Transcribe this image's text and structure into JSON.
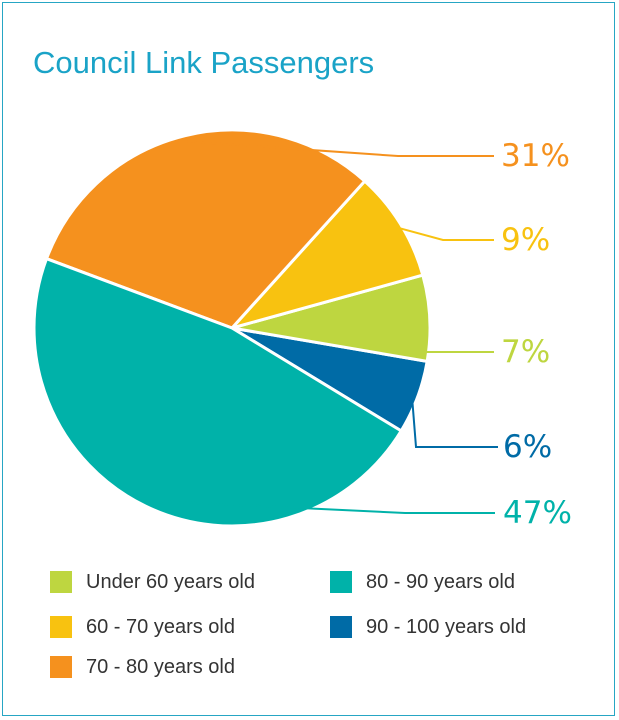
{
  "chart_data": {
    "type": "pie",
    "title": "Council Link Passengers",
    "slices": [
      {
        "label": "Under 60 years old",
        "value": 7,
        "display": "7%",
        "color": "#bed640"
      },
      {
        "label": "60 - 70 years old",
        "value": 9,
        "display": "9%",
        "color": "#f8c210"
      },
      {
        "label": "70 - 80 years old",
        "value": 31,
        "display": "31%",
        "color": "#f5911e"
      },
      {
        "label": "80 - 90 years old",
        "value": 47,
        "display": "47%",
        "color": "#00b2a9"
      },
      {
        "label": "90 - 100 years old",
        "value": 6,
        "display": "6%",
        "color": "#006ba6"
      }
    ],
    "legend_position": "bottom"
  },
  "colors": {
    "border": "#26a6c4",
    "title": "#1aa3c7",
    "legend_text": "#333333"
  }
}
